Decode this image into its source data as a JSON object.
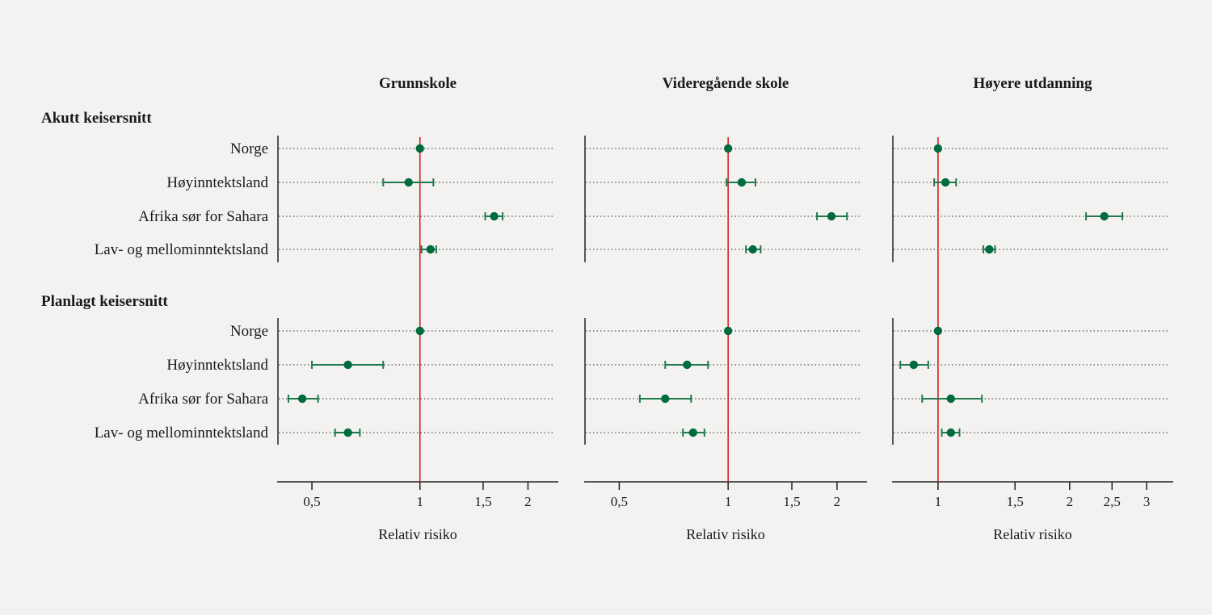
{
  "chart_data": {
    "type": "forest",
    "x_scale": "log",
    "grid": "dotted horizontal row lines",
    "reference_value": 1,
    "colors": {
      "point": "#006b3c",
      "ci": "#1e7a4e",
      "reference_line": "#d42020",
      "axis": "#222222",
      "background": "#f3f2f0"
    },
    "groups": [
      "Akutt keisersnitt",
      "Planlagt keisersnitt"
    ],
    "rows": [
      "Norge",
      "Høyinntektsland",
      "Afrika sør for Sahara",
      "Lav- og mellominntektsland"
    ],
    "panels": [
      {
        "title": "Grunnskole",
        "xlabel": "Relativ risiko",
        "xlim": [
          0.4,
          2.43
        ],
        "ticks": [
          {
            "v": 0.5,
            "label": "0,5"
          },
          {
            "v": 1,
            "label": "1"
          },
          {
            "v": 1.5,
            "label": "1,5"
          },
          {
            "v": 2,
            "label": "2"
          }
        ],
        "data": [
          [
            {
              "rr": 1.0
            },
            {
              "rr": 0.93,
              "lo": 0.79,
              "hi": 1.09
            },
            {
              "rr": 1.61,
              "lo": 1.52,
              "hi": 1.7
            },
            {
              "rr": 1.07,
              "lo": 1.01,
              "hi": 1.11
            }
          ],
          [
            {
              "rr": 1.0
            },
            {
              "rr": 0.63,
              "lo": 0.5,
              "hi": 0.79
            },
            {
              "rr": 0.47,
              "lo": 0.43,
              "hi": 0.52
            },
            {
              "rr": 0.63,
              "lo": 0.58,
              "hi": 0.68
            }
          ]
        ]
      },
      {
        "title": "Videregående skole",
        "xlabel": "Relativ risiko",
        "xlim": [
          0.4,
          2.42
        ],
        "ticks": [
          {
            "v": 0.5,
            "label": "0,5"
          },
          {
            "v": 1,
            "label": "1"
          },
          {
            "v": 1.5,
            "label": "1,5"
          },
          {
            "v": 2,
            "label": "2"
          }
        ],
        "data": [
          [
            {
              "rr": 1.0
            },
            {
              "rr": 1.09,
              "lo": 0.99,
              "hi": 1.19
            },
            {
              "rr": 1.93,
              "lo": 1.76,
              "hi": 2.13
            },
            {
              "rr": 1.17,
              "lo": 1.12,
              "hi": 1.23
            }
          ],
          [
            {
              "rr": 1.0
            },
            {
              "rr": 0.77,
              "lo": 0.67,
              "hi": 0.88
            },
            {
              "rr": 0.67,
              "lo": 0.57,
              "hi": 0.79
            },
            {
              "rr": 0.8,
              "lo": 0.75,
              "hi": 0.86
            }
          ]
        ]
      },
      {
        "title": "Høyere utdanning",
        "xlabel": "Relativ risiko",
        "xlim": [
          0.785,
          3.45
        ],
        "ticks": [
          {
            "v": 1,
            "label": "1"
          },
          {
            "v": 1.5,
            "label": "1,5"
          },
          {
            "v": 2,
            "label": "2"
          },
          {
            "v": 2.5,
            "label": "2,5"
          },
          {
            "v": 3,
            "label": "3"
          }
        ],
        "data": [
          [
            {
              "rr": 1.0
            },
            {
              "rr": 1.04,
              "lo": 0.98,
              "hi": 1.1
            },
            {
              "rr": 2.4,
              "lo": 2.18,
              "hi": 2.64
            },
            {
              "rr": 1.31,
              "lo": 1.27,
              "hi": 1.35
            }
          ],
          [
            {
              "rr": 1.0
            },
            {
              "rr": 0.88,
              "lo": 0.82,
              "hi": 0.95
            },
            {
              "rr": 1.07,
              "lo": 0.92,
              "hi": 1.26
            },
            {
              "rr": 1.07,
              "lo": 1.02,
              "hi": 1.12
            }
          ]
        ]
      }
    ]
  }
}
